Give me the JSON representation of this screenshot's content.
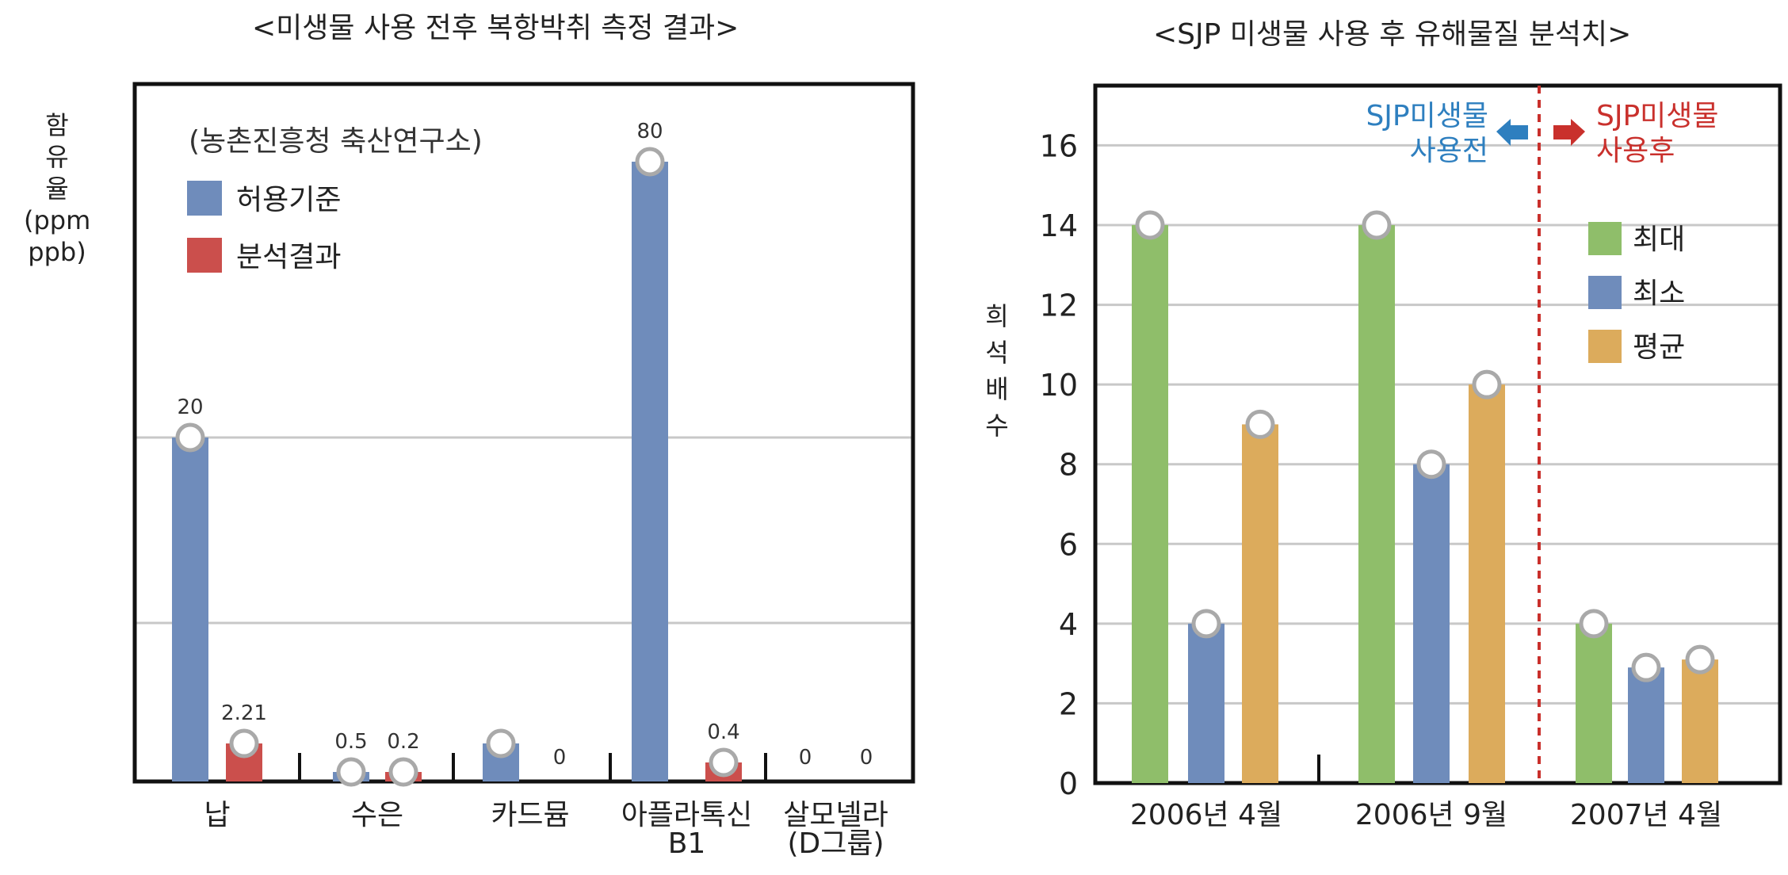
{
  "chart_data": [
    {
      "type": "bar",
      "title": "<미생물 사용 전후 복항박취 측정 결과>",
      "ylabel": "함\n유\n율\n(ppm\nppb)",
      "annotation": "(농촌진흥청 축산연구소)",
      "categories": [
        "납",
        "수은",
        "카드뮴",
        "아플라톡신\nB1",
        "살모넬라\n(D그룹)"
      ],
      "series": [
        {
          "name": "허용기준",
          "color": "#6f8cbb",
          "values": [
            20,
            0.5,
            1,
            80,
            0
          ],
          "labels": [
            "20",
            "0.5",
            "",
            "80",
            "0"
          ]
        },
        {
          "name": "분석결과",
          "color": "#cb4f4c",
          "values": [
            2.21,
            0.2,
            0,
            0.4,
            0
          ],
          "labels": [
            "2.21",
            "0.2",
            "0",
            "0.4",
            "0"
          ]
        }
      ],
      "grid": true,
      "legend_position": "top-left"
    },
    {
      "type": "bar",
      "title": "<SJP 미생물 사용 후 유해물질 분석치>",
      "ylabel": "희\n석\n배\n수",
      "categories": [
        "2006년 4월",
        "2006년 9월",
        "2007년 4월"
      ],
      "series": [
        {
          "name": "최대",
          "color": "#8fbe6a",
          "values": [
            14,
            14,
            4
          ]
        },
        {
          "name": "최소",
          "color": "#6f8cbb",
          "values": [
            4,
            8,
            2.9
          ]
        },
        {
          "name": "평균",
          "color": "#dcab5c",
          "values": [
            9,
            10,
            3.1
          ]
        }
      ],
      "yticks": [
        0,
        2,
        4,
        6,
        8,
        10,
        12,
        14,
        16
      ],
      "ylim": [
        0,
        17.5
      ],
      "grid": true,
      "legend_position": "right",
      "annotations": [
        {
          "text": "SJP미생물\n사용전",
          "color": "#2e7fbf"
        },
        {
          "text": "SJP미생물\n사용후",
          "color": "#c9302c"
        }
      ]
    }
  ]
}
